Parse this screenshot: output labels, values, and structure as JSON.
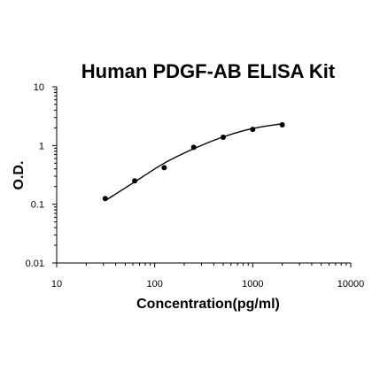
{
  "chart_data": {
    "type": "scatter",
    "title": "Human PDGF-AB ELISA Kit",
    "xlabel": "Concentration(pg/ml)",
    "ylabel": "O.D.",
    "x_scale": "log",
    "y_scale": "log",
    "xlim": [
      10,
      10000
    ],
    "ylim": [
      0.01,
      10
    ],
    "x_ticks": [
      10,
      100,
      1000,
      10000
    ],
    "x_tick_labels": [
      "10",
      "100",
      "1000",
      "10000"
    ],
    "y_ticks": [
      0.01,
      0.1,
      1,
      10
    ],
    "y_tick_labels": [
      "0.01",
      "0.1",
      "1",
      "10"
    ],
    "grid": false,
    "legend": "none",
    "series": [
      {
        "points": [
          {
            "x": 31.25,
            "y": 0.125
          },
          {
            "x": 62.5,
            "y": 0.25
          },
          {
            "x": 125,
            "y": 0.42
          },
          {
            "x": 250,
            "y": 0.93
          },
          {
            "x": 500,
            "y": 1.38
          },
          {
            "x": 1000,
            "y": 1.88
          },
          {
            "x": 2000,
            "y": 2.25
          }
        ],
        "fit": [
          {
            "x": 31.25,
            "y": 0.115
          },
          {
            "x": 62.5,
            "y": 0.24
          },
          {
            "x": 125,
            "y": 0.5
          },
          {
            "x": 250,
            "y": 0.88
          },
          {
            "x": 500,
            "y": 1.4
          },
          {
            "x": 1000,
            "y": 1.95
          },
          {
            "x": 2000,
            "y": 2.35
          }
        ]
      }
    ],
    "colors": {
      "axis": "#000000",
      "marker": "#000000",
      "line": "#000000"
    }
  }
}
